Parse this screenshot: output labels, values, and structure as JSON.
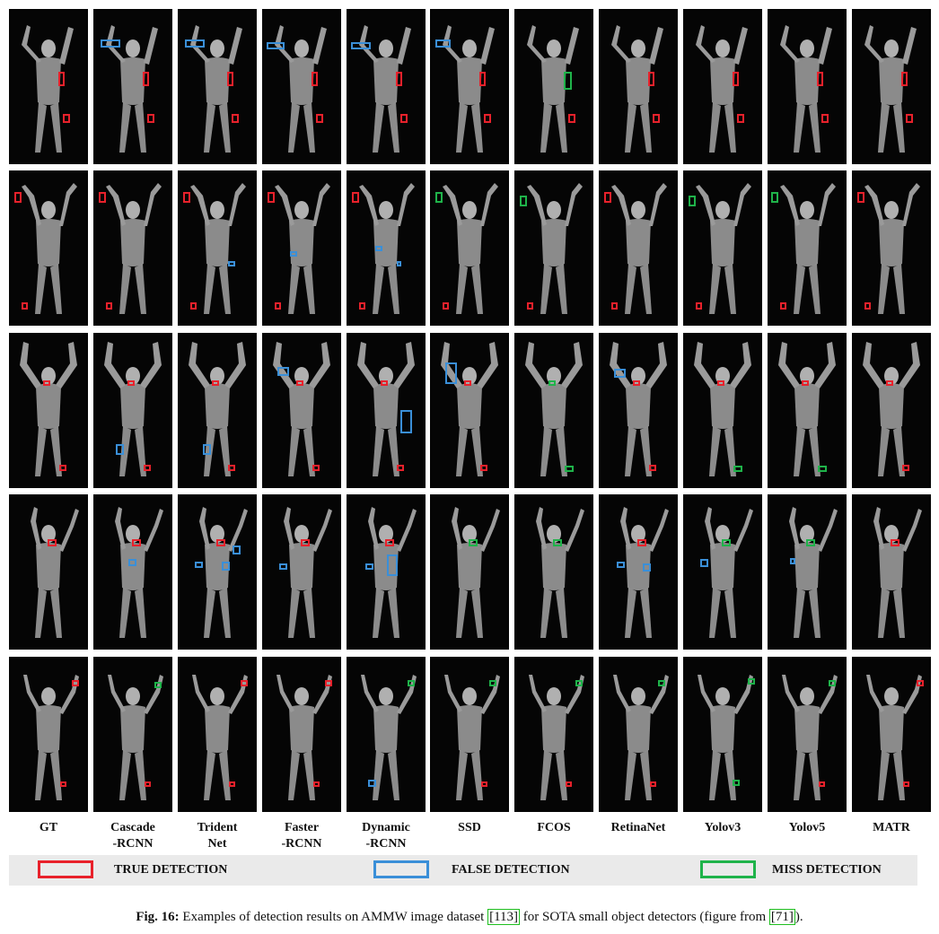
{
  "columns": [
    "GT",
    "Cascade\n-RCNN",
    "Trident\nNet",
    "Faster\n-RCNN",
    "Dynamic\n-RCNN",
    "SSD",
    "FCOS",
    "RetinaNet",
    "Yolov3",
    "Yolov5",
    "MATR"
  ],
  "legend": [
    {
      "label": "TRUE DETECTION",
      "color": "#e8212b"
    },
    {
      "label": "FALSE DETECTION",
      "color": "#3a8fd8"
    },
    {
      "label": "MISS DETECTION",
      "color": "#1fb34a"
    }
  ],
  "caption": {
    "fig_label": "Fig. 16:",
    "text_1": " Examples of detection results on AMMW image dataset ",
    "ref_1": "[113]",
    "text_2": " for SOTA small object detectors (figure from ",
    "ref_2": "[71]",
    "text_3": ")."
  }
}
